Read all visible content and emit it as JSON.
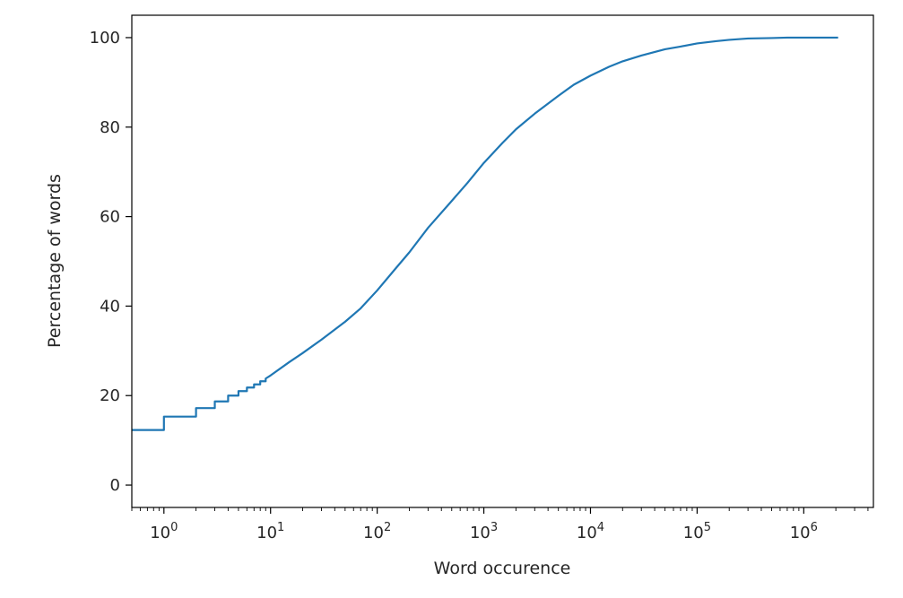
{
  "chart_data": {
    "type": "line",
    "title": "",
    "xlabel": "Word occurence",
    "ylabel": "Percentage of words",
    "x_scale": "log",
    "xlim": [
      0.5,
      4500000
    ],
    "ylim": [
      -5,
      105
    ],
    "grid": false,
    "legend": "none",
    "x_ticks": [
      {
        "value": 1,
        "base": "10",
        "exp": "0"
      },
      {
        "value": 10,
        "base": "10",
        "exp": "1"
      },
      {
        "value": 100,
        "base": "10",
        "exp": "2"
      },
      {
        "value": 1000,
        "base": "10",
        "exp": "3"
      },
      {
        "value": 10000,
        "base": "10",
        "exp": "4"
      },
      {
        "value": 100000,
        "base": "10",
        "exp": "5"
      },
      {
        "value": 1000000,
        "base": "10",
        "exp": "6"
      }
    ],
    "y_ticks": [
      {
        "value": 0,
        "label": "0"
      },
      {
        "value": 20,
        "label": "20"
      },
      {
        "value": 40,
        "label": "40"
      },
      {
        "value": 60,
        "label": "60"
      },
      {
        "value": 80,
        "label": "80"
      },
      {
        "value": 100,
        "label": "100"
      }
    ],
    "series": [
      {
        "color": "#1f77b4",
        "x": [
          0.5,
          1,
          1,
          2,
          2,
          3,
          3,
          4,
          4,
          5,
          5,
          6,
          6,
          7,
          7,
          8,
          8,
          9,
          9,
          10,
          15,
          20,
          30,
          50,
          70,
          100,
          150,
          200,
          300,
          500,
          700,
          1000,
          1500,
          2000,
          3000,
          5000,
          7000,
          10000,
          15000,
          20000,
          30000,
          50000,
          70000,
          100000,
          150000,
          200000,
          300000,
          500000,
          700000,
          1000000,
          1500000,
          2100000
        ],
        "y": [
          12.3,
          12.3,
          15.3,
          15.3,
          17.2,
          17.2,
          18.7,
          18.7,
          20.0,
          20.0,
          21.0,
          21.0,
          21.8,
          21.8,
          22.5,
          22.5,
          23.2,
          23.2,
          23.8,
          24.5,
          27.5,
          29.5,
          32.5,
          36.5,
          39.5,
          43.5,
          48.5,
          52.0,
          57.5,
          63.5,
          67.5,
          72.0,
          76.5,
          79.5,
          83.0,
          87.0,
          89.5,
          91.5,
          93.5,
          94.7,
          96.0,
          97.4,
          98.0,
          98.7,
          99.2,
          99.5,
          99.8,
          99.9,
          100.0,
          100.0,
          100.0,
          100.0
        ]
      }
    ]
  }
}
